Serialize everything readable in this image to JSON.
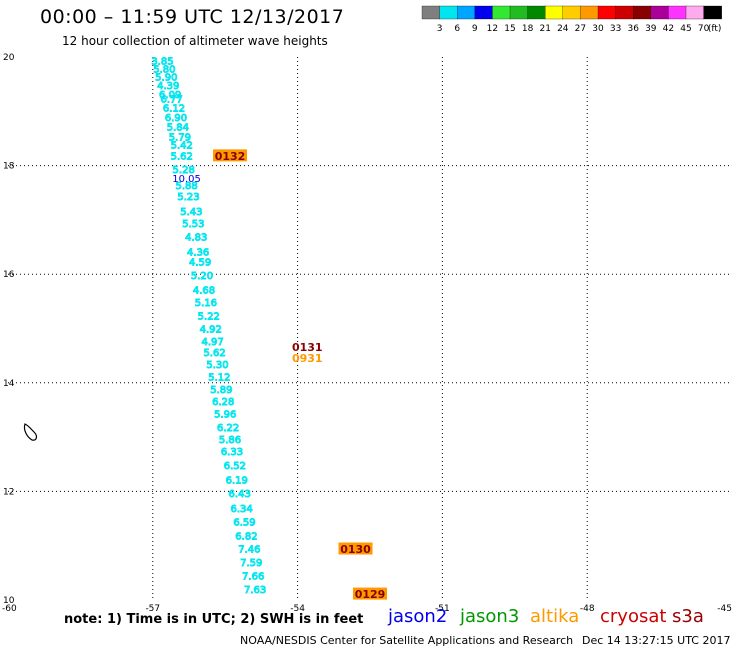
{
  "header": {
    "title": "00:00 – 11:59 UTC 12/13/2017",
    "subtitle": "12 hour collection of altimeter wave heights"
  },
  "colorbar": {
    "unit_label": "(ft)",
    "ticks": [
      "3",
      "6",
      "9",
      "12",
      "15",
      "18",
      "21",
      "24",
      "27",
      "30",
      "33",
      "36",
      "39",
      "42",
      "45",
      "70"
    ],
    "colors": [
      "#7f7f7f",
      "#00e5ee",
      "#00a5ff",
      "#0000ee",
      "#33e833",
      "#22bb22",
      "#008800",
      "#ffff00",
      "#ffcc00",
      "#ff9900",
      "#ff0000",
      "#cc0000",
      "#880000",
      "#aa0099",
      "#ff33ff",
      "#ffaaee",
      "#000000"
    ]
  },
  "chart_data": {
    "type": "scatter",
    "title": "00:00 – 11:59 UTC 12/13/2017",
    "subtitle": "12 hour collection of altimeter wave heights",
    "xlim": [
      -60,
      -45
    ],
    "ylim": [
      10,
      20
    ],
    "x_ticks": [
      "-60",
      "-57",
      "-54",
      "-51",
      "-48",
      "-45"
    ],
    "y_ticks": [
      "10",
      "12",
      "14",
      "16",
      "18",
      "20"
    ],
    "grid": true,
    "track": {
      "color": "#00e5ee",
      "points": [
        {
          "lon": -56.8,
          "lat": 19.92,
          "label": "3.85"
        },
        {
          "lon": -56.76,
          "lat": 19.77,
          "label": "5.80"
        },
        {
          "lon": -56.72,
          "lat": 19.62,
          "label": "5.90"
        },
        {
          "lon": -56.68,
          "lat": 19.47,
          "label": "4.39"
        },
        {
          "lon": -56.64,
          "lat": 19.3,
          "label": "6.09"
        },
        {
          "lon": -56.61,
          "lat": 19.22,
          "label": "6.77"
        },
        {
          "lon": -56.56,
          "lat": 19.05,
          "label": "6.12"
        },
        {
          "lon": -56.52,
          "lat": 18.88,
          "label": "6.90"
        },
        {
          "lon": -56.48,
          "lat": 18.7,
          "label": "5.84"
        },
        {
          "lon": -56.44,
          "lat": 18.52,
          "label": "5.79"
        },
        {
          "lon": -56.4,
          "lat": 18.37,
          "label": "5.42"
        },
        {
          "lon": -56.4,
          "lat": 18.17,
          "label": "5.62"
        },
        {
          "lon": -56.36,
          "lat": 17.92,
          "label": "5.28"
        },
        {
          "lon": -56.3,
          "lat": 17.62,
          "label": "5.88"
        },
        {
          "lon": -56.26,
          "lat": 17.42,
          "label": "5.23"
        },
        {
          "lon": -56.2,
          "lat": 17.15,
          "label": "5.43"
        },
        {
          "lon": -56.16,
          "lat": 16.92,
          "label": "5.53"
        },
        {
          "lon": -56.1,
          "lat": 16.68,
          "label": "4.83"
        },
        {
          "lon": -56.06,
          "lat": 16.4,
          "label": "4.36"
        },
        {
          "lon": -56.02,
          "lat": 16.22,
          "label": "4.59"
        },
        {
          "lon": -55.98,
          "lat": 15.97,
          "label": "5.20"
        },
        {
          "lon": -55.94,
          "lat": 15.7,
          "label": "4.68"
        },
        {
          "lon": -55.9,
          "lat": 15.47,
          "label": "5.16"
        },
        {
          "lon": -55.84,
          "lat": 15.22,
          "label": "5.22"
        },
        {
          "lon": -55.8,
          "lat": 14.98,
          "label": "4.92"
        },
        {
          "lon": -55.76,
          "lat": 14.75,
          "label": "4.97"
        },
        {
          "lon": -55.72,
          "lat": 14.55,
          "label": "5.62"
        },
        {
          "lon": -55.66,
          "lat": 14.33,
          "label": "5.30"
        },
        {
          "lon": -55.62,
          "lat": 14.1,
          "label": "5.12"
        },
        {
          "lon": -55.58,
          "lat": 13.87,
          "label": "5.89"
        },
        {
          "lon": -55.54,
          "lat": 13.65,
          "label": "6.28"
        },
        {
          "lon": -55.5,
          "lat": 13.42,
          "label": "5.96"
        },
        {
          "lon": -55.44,
          "lat": 13.17,
          "label": "6.22"
        },
        {
          "lon": -55.4,
          "lat": 12.95,
          "label": "5.86"
        },
        {
          "lon": -55.36,
          "lat": 12.73,
          "label": "6.33"
        },
        {
          "lon": -55.3,
          "lat": 12.47,
          "label": "6.52"
        },
        {
          "lon": -55.26,
          "lat": 12.2,
          "label": "6.19"
        },
        {
          "lon": -55.2,
          "lat": 11.95,
          "label": "6.43"
        },
        {
          "lon": -55.16,
          "lat": 11.68,
          "label": "6.34"
        },
        {
          "lon": -55.1,
          "lat": 11.43,
          "label": "6.59"
        },
        {
          "lon": -55.06,
          "lat": 11.17,
          "label": "6.82"
        },
        {
          "lon": -55.0,
          "lat": 10.93,
          "label": "7.46"
        },
        {
          "lon": -54.96,
          "lat": 10.68,
          "label": "7.59"
        },
        {
          "lon": -54.92,
          "lat": 10.43,
          "label": "7.66"
        },
        {
          "lon": -54.88,
          "lat": 10.18,
          "label": "7.63"
        }
      ]
    },
    "highlight_point": {
      "lon": -56.3,
      "lat": 17.77,
      "label": "10.05",
      "color": "#0000ee"
    },
    "pass_times": [
      {
        "lon": -55.4,
        "lat": 18.17,
        "label": "0132",
        "color": "#880000",
        "box": "#ff9900"
      },
      {
        "lon": -53.8,
        "lat": 14.65,
        "label": "0131",
        "color": "#880000",
        "box": "none"
      },
      {
        "lon": -53.8,
        "lat": 14.45,
        "label": "0931",
        "color": "#ff9900",
        "box": "none"
      },
      {
        "lon": -52.8,
        "lat": 10.93,
        "label": "0130",
        "color": "#880000",
        "box": "#ff9900"
      },
      {
        "lon": -52.5,
        "lat": 10.1,
        "label": "0129",
        "color": "#880000",
        "box": "#ff9900"
      }
    ]
  },
  "legend": {
    "note": "note: 1) Time is in UTC; 2) SWH is in feet",
    "satellites": [
      {
        "name": "jason2",
        "color": "#0000ee"
      },
      {
        "name": "jason3",
        "color": "#009900"
      },
      {
        "name": "altika",
        "color": "#ff9900"
      },
      {
        "name": "cryosat",
        "color": "#cc0000"
      },
      {
        "name": "s3a",
        "color": "#990000"
      }
    ]
  },
  "footer": {
    "credit": "NOAA/NESDIS Center for Satellite Applications and Research",
    "timestamp": "Dec 14 13:27:15 UTC 2017"
  }
}
